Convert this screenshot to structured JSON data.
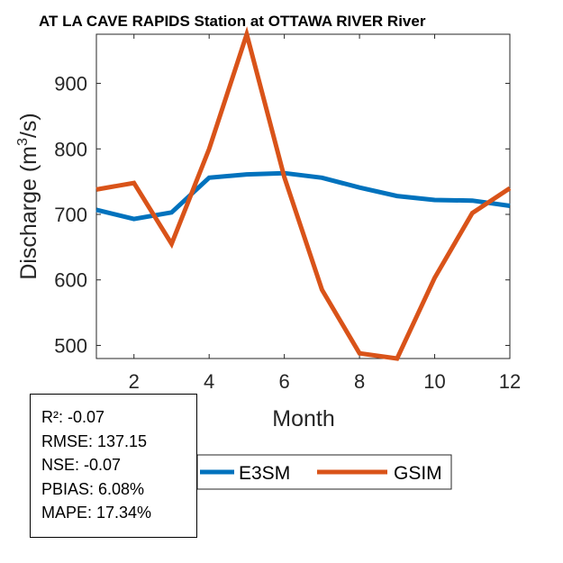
{
  "chart_data": {
    "type": "line",
    "title": "AT LA CAVE RAPIDS  Station at  OTTAWA RIVER  River",
    "xlabel": "Month",
    "ylabel": "Discharge (m",
    "ylabel_sup": "3",
    "ylabel_tail": "/s)",
    "x": [
      1,
      2,
      3,
      4,
      5,
      6,
      7,
      8,
      9,
      10,
      11,
      12
    ],
    "xlim": [
      1,
      12
    ],
    "ylim": [
      480,
      975
    ],
    "xticks": [
      2,
      4,
      6,
      8,
      10,
      12
    ],
    "yticks": [
      500,
      600,
      700,
      800,
      900
    ],
    "series": [
      {
        "name": "E3SM",
        "color": "#0072BD",
        "values": [
          707,
          693,
          703,
          756,
          761,
          763,
          756,
          741,
          728,
          722,
          721,
          713
        ]
      },
      {
        "name": "GSIM",
        "color": "#D95319",
        "values": [
          738,
          748,
          655,
          800,
          975,
          757,
          585,
          488,
          480,
          603,
          702,
          740
        ]
      }
    ],
    "legend": {
      "position": "bottom-center",
      "entries": [
        "E3SM",
        "GSIM"
      ]
    }
  },
  "stats": [
    {
      "label": "R²: -0.07"
    },
    {
      "label": "RMSE: 137.15"
    },
    {
      "label": "NSE: -0.07"
    },
    {
      "label": "PBIAS: 6.08%"
    },
    {
      "label": "MAPE: 17.34%"
    }
  ]
}
